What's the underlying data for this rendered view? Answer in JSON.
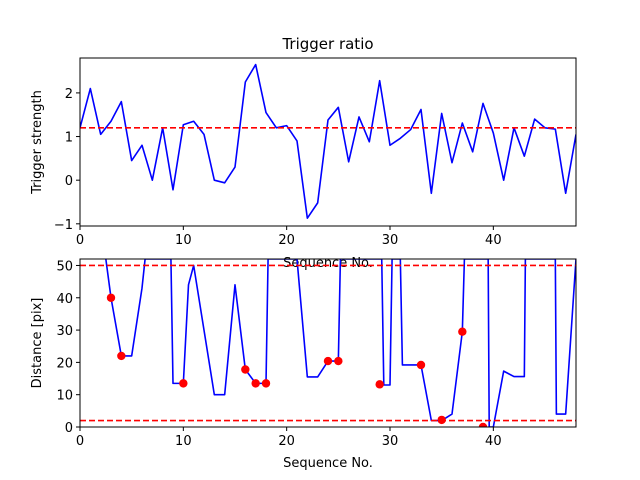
{
  "chart_data": [
    {
      "type": "line",
      "title": "Trigger ratio",
      "xlabel": "Sequence No.",
      "ylabel": "Trigger strength",
      "xlim": [
        0,
        48
      ],
      "ylim": [
        -1.05,
        2.8
      ],
      "xticks": [
        0,
        10,
        20,
        30,
        40
      ],
      "yticks": [
        -1,
        0,
        1,
        2
      ],
      "threshold": 1.2,
      "series": [
        {
          "color": "#0000ff",
          "x": [
            0,
            1,
            2,
            3,
            4,
            5,
            6,
            7,
            8,
            9,
            10,
            11,
            12,
            13,
            14,
            15,
            16,
            17,
            18,
            19,
            20,
            21,
            22,
            23,
            24,
            25,
            26,
            27,
            28,
            29,
            30,
            31,
            32,
            33,
            34,
            35,
            36,
            37,
            38,
            39,
            40,
            41,
            42,
            43,
            44,
            45,
            46,
            47,
            48
          ],
          "y": [
            1.2,
            2.1,
            1.05,
            1.35,
            1.8,
            0.45,
            0.8,
            0.0,
            1.2,
            -0.22,
            1.27,
            1.35,
            1.05,
            0.0,
            -0.06,
            0.3,
            2.25,
            2.65,
            1.55,
            1.2,
            1.25,
            0.9,
            -0.87,
            -0.52,
            1.38,
            1.67,
            0.42,
            1.45,
            0.88,
            2.28,
            0.8,
            0.96,
            1.16,
            1.62,
            -0.3,
            1.53,
            0.4,
            1.31,
            0.65,
            1.76,
            1.08,
            0.0,
            1.2,
            0.55,
            1.4,
            1.2,
            1.17,
            -0.3,
            1.05
          ]
        }
      ]
    },
    {
      "type": "line",
      "title": "",
      "xlabel": "Sequence No.",
      "ylabel": "Distance [pix]",
      "xlim": [
        0,
        48
      ],
      "ylim": [
        0,
        52
      ],
      "xticks": [
        0,
        10,
        20,
        30,
        40
      ],
      "yticks": [
        0,
        10,
        20,
        30,
        40,
        50
      ],
      "thresholds": [
        50,
        2
      ],
      "series": [
        {
          "color": "#0000ff",
          "x": [
            2.5,
            3,
            4,
            5,
            6,
            6.3,
            8.8,
            9,
            10,
            10.5,
            11,
            12,
            13,
            14,
            15,
            16,
            17,
            18,
            18.2,
            21,
            22,
            23,
            24,
            25,
            25.2,
            29.2,
            29.4,
            30,
            30.2,
            31,
            31.2,
            32,
            33,
            34,
            35,
            36,
            37,
            37.2,
            39.5,
            39.6,
            40,
            41,
            42,
            43,
            43.1,
            46,
            46.1,
            47,
            48
          ],
          "y": [
            52,
            40,
            22,
            22,
            43,
            52,
            52,
            13.5,
            13.5,
            44,
            50,
            30,
            10,
            10,
            44,
            17.8,
            13.5,
            13.5,
            52,
            52,
            15.5,
            15.5,
            20.4,
            20.4,
            52,
            52,
            13,
            13,
            52,
            52,
            19.2,
            19.2,
            19.2,
            2,
            2,
            4,
            29.5,
            52,
            52,
            0,
            0,
            17.3,
            15.6,
            15.6,
            52,
            52,
            4,
            4,
            52
          ]
        }
      ],
      "highlighted_points": {
        "color": "#ff0000",
        "x": [
          3,
          4,
          10,
          16,
          17,
          18,
          24,
          25,
          29,
          33,
          35,
          37,
          39
        ],
        "y": [
          40,
          22,
          13.5,
          17.8,
          13.5,
          13.5,
          20.4,
          20.4,
          13.2,
          19.2,
          2.2,
          29.5,
          0
        ]
      }
    }
  ]
}
